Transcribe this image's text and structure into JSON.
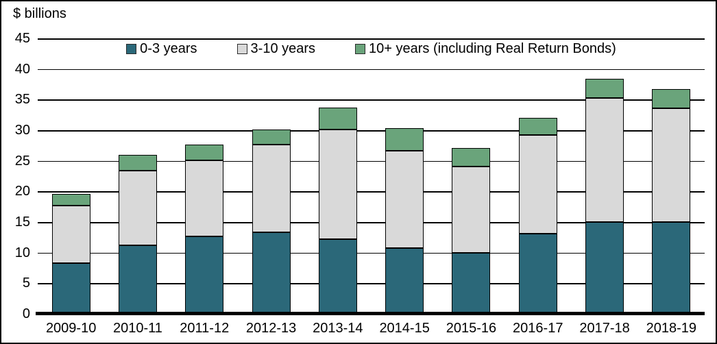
{
  "unit_label": "$ billions",
  "colors": {
    "teal": "#2b6879",
    "gray": "#d9d9d9",
    "green": "#6aa47b",
    "axis": "#000000",
    "background": "#ffffff"
  },
  "chart_data": {
    "type": "bar",
    "stacked": true,
    "title": "$ billions",
    "xlabel": "",
    "ylabel": "$ billions",
    "ylim": [
      0,
      45
    ],
    "ytick_step": 5,
    "grid": true,
    "legend_position": "top-center",
    "categories": [
      "2009-10",
      "2010-11",
      "2011-12",
      "2012-13",
      "2013-14",
      "2014-15",
      "2015-16",
      "2016-17",
      "2017-18",
      "2018-19"
    ],
    "series": [
      {
        "name": "0-3 years",
        "color_key": "teal",
        "values": [
          8.3,
          11.2,
          12.6,
          13.3,
          12.2,
          10.7,
          10.0,
          13.1,
          15.0,
          15.0
        ]
      },
      {
        "name": "3-10 years",
        "color_key": "gray",
        "values": [
          9.4,
          12.2,
          12.5,
          14.3,
          17.9,
          16.0,
          14.1,
          16.1,
          20.3,
          18.6
        ]
      },
      {
        "name": "10+ years (including Real Return Bonds)",
        "color_key": "green",
        "values": [
          1.9,
          2.6,
          2.5,
          2.5,
          3.6,
          3.6,
          3.0,
          2.8,
          3.1,
          3.1
        ]
      }
    ]
  }
}
